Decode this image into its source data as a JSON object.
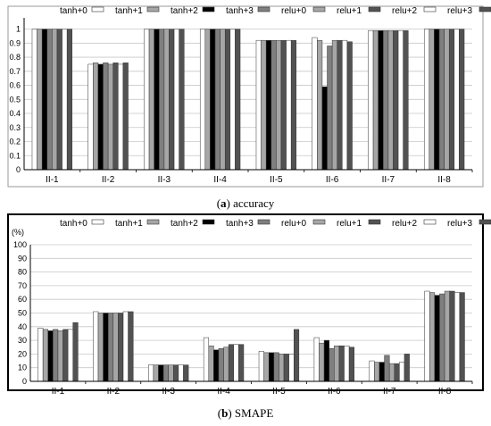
{
  "series_colors": [
    "#ffffff",
    "#a6a6a6",
    "#000000",
    "#7f7f7f",
    "#a6a6a6",
    "#525252",
    "#ffffff",
    "#525252"
  ],
  "chart_data": [
    {
      "type": "bar",
      "caption_letter": "a",
      "caption_text": "accuracy",
      "categories": [
        "II-1",
        "II-2",
        "II-3",
        "II-4",
        "II-5",
        "II-6",
        "II-7",
        "II-8"
      ],
      "yticks": [
        "0",
        "0.1",
        "0.2",
        "0.3",
        "0.4",
        "0.5",
        "0.6",
        "0.7",
        "0.8",
        "0.9",
        "1"
      ],
      "yunit": "",
      "ylim": [
        0,
        1.08
      ],
      "grid": true,
      "legend_position": "top",
      "series": [
        {
          "name": "tanh+0",
          "values": [
            1.0,
            0.75,
            1.0,
            1.0,
            0.92,
            0.94,
            0.99,
            1.0
          ]
        },
        {
          "name": "tanh+1",
          "values": [
            1.0,
            0.76,
            1.0,
            1.0,
            0.92,
            0.92,
            0.99,
            1.0
          ]
        },
        {
          "name": "tanh+2",
          "values": [
            1.0,
            0.75,
            1.0,
            1.0,
            0.92,
            0.59,
            0.99,
            1.0
          ]
        },
        {
          "name": "tanh+3",
          "values": [
            1.0,
            0.76,
            1.0,
            1.0,
            0.92,
            0.88,
            0.99,
            1.0
          ]
        },
        {
          "name": "relu+0",
          "values": [
            1.0,
            0.75,
            1.0,
            1.0,
            0.92,
            0.92,
            0.99,
            1.0
          ]
        },
        {
          "name": "relu+1",
          "values": [
            1.0,
            0.76,
            1.0,
            1.0,
            0.92,
            0.92,
            0.99,
            1.0
          ]
        },
        {
          "name": "relu+2",
          "values": [
            1.0,
            0.75,
            1.0,
            1.0,
            0.92,
            0.92,
            0.99,
            1.0
          ]
        },
        {
          "name": "relu+3",
          "values": [
            1.0,
            0.76,
            1.0,
            1.0,
            0.92,
            0.91,
            0.99,
            1.0
          ]
        }
      ]
    },
    {
      "type": "bar",
      "caption_letter": "b",
      "caption_text": "SMAPE",
      "categories": [
        "II-1",
        "II-2",
        "II-3",
        "II-4",
        "II-5",
        "II-6",
        "II-7",
        "II-8"
      ],
      "yticks": [
        "0",
        "10",
        "20",
        "30",
        "40",
        "50",
        "60",
        "70",
        "80",
        "90",
        "100"
      ],
      "yunit": "(%)",
      "ylim": [
        0,
        100
      ],
      "grid": true,
      "legend_position": "top",
      "series": [
        {
          "name": "tanh+0",
          "values": [
            39,
            51,
            12,
            32,
            22,
            32,
            15,
            66
          ]
        },
        {
          "name": "tanh+1",
          "values": [
            38,
            50,
            12,
            26,
            21,
            28,
            14,
            65
          ]
        },
        {
          "name": "tanh+2",
          "values": [
            37,
            50,
            12,
            23,
            21,
            30,
            14,
            63
          ]
        },
        {
          "name": "tanh+3",
          "values": [
            38,
            50,
            12,
            24,
            21,
            24,
            19,
            64
          ]
        },
        {
          "name": "relu+0",
          "values": [
            37,
            50,
            12,
            25,
            20,
            26,
            13,
            66
          ]
        },
        {
          "name": "relu+1",
          "values": [
            38,
            50,
            12,
            27,
            20,
            26,
            13,
            66
          ]
        },
        {
          "name": "relu+2",
          "values": [
            38,
            51,
            12,
            27,
            20,
            26,
            14,
            65
          ]
        },
        {
          "name": "relu+3",
          "values": [
            43,
            51,
            12,
            27,
            38,
            25,
            20,
            65
          ]
        }
      ]
    }
  ]
}
